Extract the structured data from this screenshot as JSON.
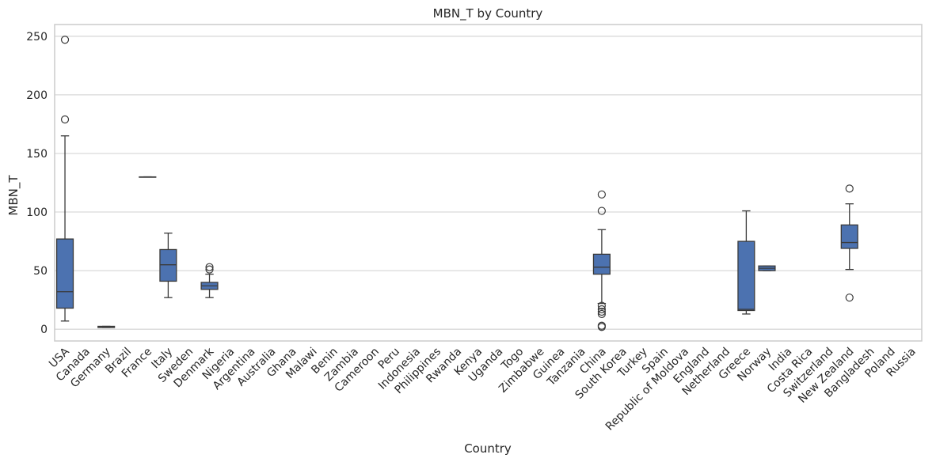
{
  "chart_data": {
    "type": "box",
    "title": "MBN_T by Country",
    "xlabel": "Country",
    "ylabel": "MBN_T",
    "ylim": [
      -10,
      260
    ],
    "yticks": [
      0,
      50,
      100,
      150,
      200,
      250
    ],
    "grid": "horizontal",
    "colors": {
      "box": "#4c72b0",
      "line": "#3a3a3a",
      "grid": "#d9d9d9",
      "frame": "#cccccc"
    },
    "categories": [
      "USA",
      "Canada",
      "Germany",
      "Brazil",
      "France",
      "Italy",
      "Sweden",
      "Denmark",
      "Nigeria",
      "Argentina",
      "Australia",
      "Ghana",
      "Malawi",
      "Benin",
      "Zambia",
      "Cameroon",
      "Peru",
      "Indonesia",
      "Philippines",
      "Rwanda",
      "Kenya",
      "Uganda",
      "Togo",
      "Zimbabwe",
      "Guinea",
      "Tanzania",
      "China",
      "South Korea",
      "Turkey",
      "Spain",
      "Republic of Moldova",
      "England",
      "Netherland",
      "Greece",
      "Norway",
      "India",
      "Costa Rica",
      "Switzerland",
      "New Zealand",
      "Bangladesh",
      "Poland",
      "Russia"
    ],
    "boxes": [
      {
        "category": "USA",
        "q1": 18,
        "median": 32,
        "q3": 77,
        "whisker_low": 7,
        "whisker_high": 165,
        "outliers": [
          247,
          179
        ]
      },
      {
        "category": "Germany",
        "q1": 1.5,
        "median": 2,
        "q3": 2.5,
        "whisker_low": 1.5,
        "whisker_high": 2.5,
        "outliers": []
      },
      {
        "category": "France",
        "q1": 130,
        "median": 130,
        "q3": 130,
        "whisker_low": 130,
        "whisker_high": 130,
        "outliers": []
      },
      {
        "category": "Italy",
        "q1": 41,
        "median": 55,
        "q3": 68,
        "whisker_low": 27,
        "whisker_high": 82,
        "outliers": []
      },
      {
        "category": "Denmark",
        "q1": 34,
        "median": 37,
        "q3": 40,
        "whisker_low": 27,
        "whisker_high": 47,
        "outliers": [
          51,
          53
        ]
      },
      {
        "category": "China",
        "q1": 47,
        "median": 53,
        "q3": 64,
        "whisker_low": 22,
        "whisker_high": 85,
        "outliers": [
          115,
          101,
          20,
          17,
          15,
          13,
          3,
          2
        ]
      },
      {
        "category": "Greece",
        "q1": 16,
        "median": 17,
        "q3": 75,
        "whisker_low": 13,
        "whisker_high": 101,
        "outliers": []
      },
      {
        "category": "Norway",
        "q1": 50,
        "median": 52,
        "q3": 54,
        "whisker_low": 50,
        "whisker_high": 54,
        "outliers": []
      },
      {
        "category": "New Zealand",
        "q1": 69,
        "median": 74,
        "q3": 89,
        "whisker_low": 51,
        "whisker_high": 107,
        "outliers": [
          120,
          27
        ]
      }
    ]
  }
}
